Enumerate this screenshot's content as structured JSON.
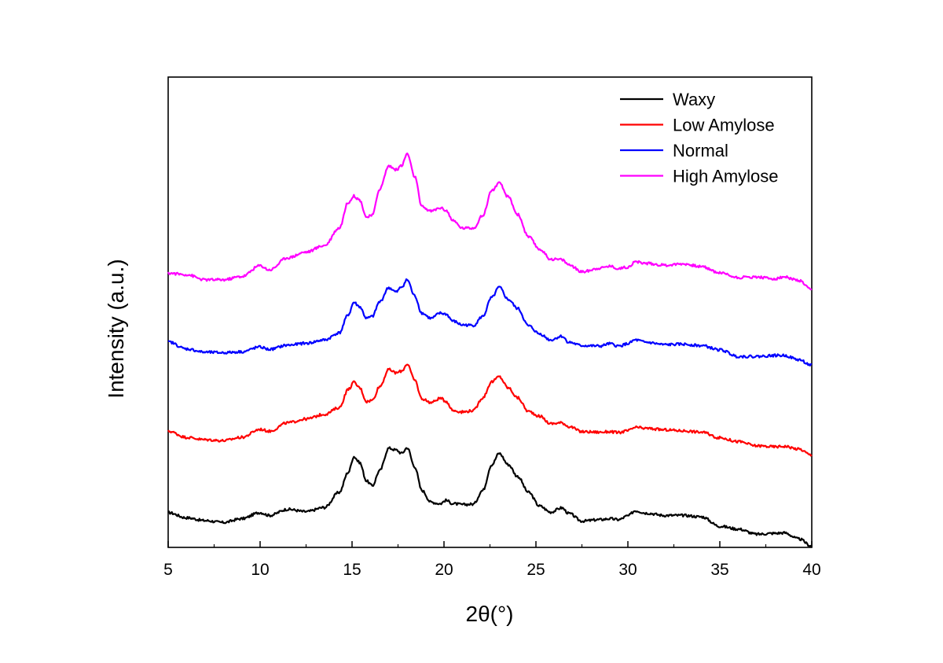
{
  "chart_data": {
    "type": "line",
    "title": "",
    "xlabel": "2θ(°)",
    "ylabel": "Intensity (a.u.)",
    "xlim": [
      5,
      40
    ],
    "ylim": [
      0,
      100
    ],
    "x_ticks": [
      "5",
      "10",
      "15",
      "20",
      "25",
      "30",
      "35",
      "40"
    ],
    "y_ticks_shown": false,
    "grid": false,
    "legend_position": "top-right",
    "series": [
      {
        "name": "Waxy",
        "color": "#000000",
        "points": [
          [
            5,
            7.4
          ],
          [
            6,
            6.3
          ],
          [
            7,
            5.7
          ],
          [
            8,
            5.3
          ],
          [
            9,
            6.1
          ],
          [
            10,
            7.4
          ],
          [
            10.5,
            6.8
          ],
          [
            11.5,
            8.1
          ],
          [
            12.5,
            7.6
          ],
          [
            13.5,
            8.5
          ],
          [
            14.3,
            11.7
          ],
          [
            14.8,
            16.0
          ],
          [
            15.1,
            19.3
          ],
          [
            15.4,
            18.1
          ],
          [
            15.8,
            14.1
          ],
          [
            16.1,
            13.1
          ],
          [
            16.5,
            16.3
          ],
          [
            17.0,
            21.1
          ],
          [
            17.4,
            20.7
          ],
          [
            17.7,
            20.0
          ],
          [
            18.0,
            21.2
          ],
          [
            18.4,
            17.2
          ],
          [
            18.8,
            12.1
          ],
          [
            19.3,
            9.6
          ],
          [
            19.8,
            9.3
          ],
          [
            20.1,
            10.0
          ],
          [
            20.5,
            9.3
          ],
          [
            21.0,
            9.1
          ],
          [
            21.6,
            9.2
          ],
          [
            22.1,
            12.1
          ],
          [
            22.6,
            17.6
          ],
          [
            23.0,
            20.0
          ],
          [
            23.5,
            17.6
          ],
          [
            24.0,
            15.1
          ],
          [
            24.6,
            11.7
          ],
          [
            25.2,
            8.8
          ],
          [
            25.8,
            7.5
          ],
          [
            26.4,
            8.4
          ],
          [
            26.8,
            7.2
          ],
          [
            27.5,
            5.6
          ],
          [
            28.5,
            5.9
          ],
          [
            29.0,
            6.1
          ],
          [
            29.5,
            5.9
          ],
          [
            30.0,
            6.7
          ],
          [
            30.4,
            7.8
          ],
          [
            31.0,
            7.3
          ],
          [
            32.0,
            6.8
          ],
          [
            33.0,
            6.8
          ],
          [
            34.0,
            6.5
          ],
          [
            35.0,
            4.5
          ],
          [
            36.0,
            3.9
          ],
          [
            37.0,
            2.8
          ],
          [
            38.0,
            3.0
          ],
          [
            38.5,
            3.1
          ],
          [
            39.3,
            1.8
          ],
          [
            40,
            0.3
          ]
        ]
      },
      {
        "name": "Low Amylose",
        "color": "#ff0000",
        "points": [
          [
            5,
            24.7
          ],
          [
            6,
            23.4
          ],
          [
            7,
            22.9
          ],
          [
            8,
            22.7
          ],
          [
            9,
            23.4
          ],
          [
            10,
            25.1
          ],
          [
            10.5,
            24.7
          ],
          [
            11.5,
            26.5
          ],
          [
            12.5,
            27.3
          ],
          [
            13.5,
            28.3
          ],
          [
            14.3,
            29.7
          ],
          [
            14.8,
            33.6
          ],
          [
            15.1,
            35.1
          ],
          [
            15.4,
            34.0
          ],
          [
            15.8,
            31.0
          ],
          [
            16.1,
            31.3
          ],
          [
            16.5,
            34.2
          ],
          [
            17.0,
            37.8
          ],
          [
            17.4,
            37.1
          ],
          [
            17.7,
            37.5
          ],
          [
            18.0,
            39.0
          ],
          [
            18.4,
            35.6
          ],
          [
            18.8,
            31.6
          ],
          [
            19.3,
            30.8
          ],
          [
            19.8,
            31.7
          ],
          [
            20.1,
            31.1
          ],
          [
            20.5,
            29.1
          ],
          [
            21.0,
            28.8
          ],
          [
            21.6,
            29.1
          ],
          [
            22.1,
            31.8
          ],
          [
            22.6,
            35.2
          ],
          [
            23.0,
            36.3
          ],
          [
            23.5,
            33.9
          ],
          [
            24.0,
            31.8
          ],
          [
            24.6,
            28.9
          ],
          [
            25.2,
            27.9
          ],
          [
            25.8,
            26.3
          ],
          [
            26.4,
            26.5
          ],
          [
            26.8,
            25.7
          ],
          [
            27.5,
            24.6
          ],
          [
            28.5,
            24.5
          ],
          [
            29.0,
            24.6
          ],
          [
            29.5,
            24.4
          ],
          [
            30.0,
            24.8
          ],
          [
            30.4,
            25.5
          ],
          [
            31.0,
            25.3
          ],
          [
            32.0,
            25.0
          ],
          [
            33.0,
            24.8
          ],
          [
            34.0,
            24.5
          ],
          [
            35.0,
            23.3
          ],
          [
            36.0,
            22.5
          ],
          [
            37.0,
            21.6
          ],
          [
            38.0,
            21.4
          ],
          [
            38.5,
            21.5
          ],
          [
            39.3,
            20.9
          ],
          [
            40,
            19.6
          ]
        ]
      },
      {
        "name": "Normal",
        "color": "#0000ff",
        "points": [
          [
            5,
            43.7
          ],
          [
            6,
            42.2
          ],
          [
            7,
            41.5
          ],
          [
            8,
            41.4
          ],
          [
            9,
            41.6
          ],
          [
            10,
            42.6
          ],
          [
            10.5,
            42.1
          ],
          [
            11.5,
            43.0
          ],
          [
            12.5,
            43.4
          ],
          [
            13.5,
            44.1
          ],
          [
            14.3,
            45.6
          ],
          [
            14.8,
            49.5
          ],
          [
            15.1,
            52.1
          ],
          [
            15.4,
            51.2
          ],
          [
            15.8,
            48.7
          ],
          [
            16.1,
            49.1
          ],
          [
            16.5,
            52.2
          ],
          [
            17.0,
            55.2
          ],
          [
            17.4,
            54.3
          ],
          [
            17.7,
            55.4
          ],
          [
            18.0,
            56.9
          ],
          [
            18.4,
            53.5
          ],
          [
            18.8,
            49.8
          ],
          [
            19.3,
            48.7
          ],
          [
            19.8,
            49.8
          ],
          [
            20.1,
            49.6
          ],
          [
            20.5,
            48.1
          ],
          [
            21.0,
            47.3
          ],
          [
            21.6,
            47.2
          ],
          [
            22.1,
            49.1
          ],
          [
            22.6,
            53.1
          ],
          [
            23.0,
            55.3
          ],
          [
            23.5,
            52.7
          ],
          [
            24.0,
            50.8
          ],
          [
            24.6,
            47.1
          ],
          [
            25.2,
            45.4
          ],
          [
            25.8,
            44.1
          ],
          [
            26.4,
            44.9
          ],
          [
            26.8,
            43.6
          ],
          [
            27.5,
            42.9
          ],
          [
            28.5,
            42.8
          ],
          [
            29.0,
            43.3
          ],
          [
            29.5,
            42.8
          ],
          [
            30.0,
            43.3
          ],
          [
            30.4,
            44.1
          ],
          [
            31.0,
            43.6
          ],
          [
            32.0,
            43.1
          ],
          [
            33.0,
            43.2
          ],
          [
            34.0,
            42.9
          ],
          [
            35.0,
            42.0
          ],
          [
            36.0,
            40.6
          ],
          [
            37.0,
            40.6
          ],
          [
            38.0,
            40.8
          ],
          [
            38.5,
            40.8
          ],
          [
            39.3,
            39.9
          ],
          [
            40,
            38.7
          ]
        ]
      },
      {
        "name": "High Amylose",
        "color": "#ff00ff",
        "points": [
          [
            5,
            58.3
          ],
          [
            6,
            58.0
          ],
          [
            7,
            56.9
          ],
          [
            8,
            56.9
          ],
          [
            9,
            57.6
          ],
          [
            10,
            59.9
          ],
          [
            10.5,
            59.0
          ],
          [
            11.5,
            61.6
          ],
          [
            12.5,
            62.8
          ],
          [
            13.5,
            64.2
          ],
          [
            14.3,
            67.9
          ],
          [
            14.8,
            73.4
          ],
          [
            15.1,
            74.7
          ],
          [
            15.4,
            73.9
          ],
          [
            15.8,
            70.2
          ],
          [
            16.1,
            70.6
          ],
          [
            16.5,
            76.2
          ],
          [
            17.0,
            81.1
          ],
          [
            17.4,
            80.3
          ],
          [
            17.7,
            81.2
          ],
          [
            18.0,
            83.7
          ],
          [
            18.4,
            78.9
          ],
          [
            18.8,
            72.4
          ],
          [
            19.3,
            71.5
          ],
          [
            19.8,
            72.2
          ],
          [
            20.1,
            71.7
          ],
          [
            20.5,
            69.4
          ],
          [
            21.0,
            67.9
          ],
          [
            21.6,
            67.9
          ],
          [
            22.1,
            70.5
          ],
          [
            22.6,
            75.9
          ],
          [
            23.0,
            77.4
          ],
          [
            23.5,
            74.5
          ],
          [
            24.0,
            70.8
          ],
          [
            24.6,
            66.0
          ],
          [
            25.2,
            63.4
          ],
          [
            25.8,
            61.3
          ],
          [
            26.4,
            61.2
          ],
          [
            26.8,
            60.1
          ],
          [
            27.5,
            58.6
          ],
          [
            28.5,
            59.4
          ],
          [
            29.0,
            59.8
          ],
          [
            29.5,
            59.3
          ],
          [
            30.0,
            59.6
          ],
          [
            30.4,
            60.7
          ],
          [
            31.0,
            60.4
          ],
          [
            32.0,
            60.0
          ],
          [
            33.0,
            60.3
          ],
          [
            34.0,
            59.7
          ],
          [
            35.0,
            58.4
          ],
          [
            36.0,
            57.4
          ],
          [
            37.0,
            57.5
          ],
          [
            38.0,
            57.1
          ],
          [
            38.5,
            57.5
          ],
          [
            39.3,
            56.7
          ],
          [
            40,
            54.7
          ]
        ]
      }
    ]
  }
}
